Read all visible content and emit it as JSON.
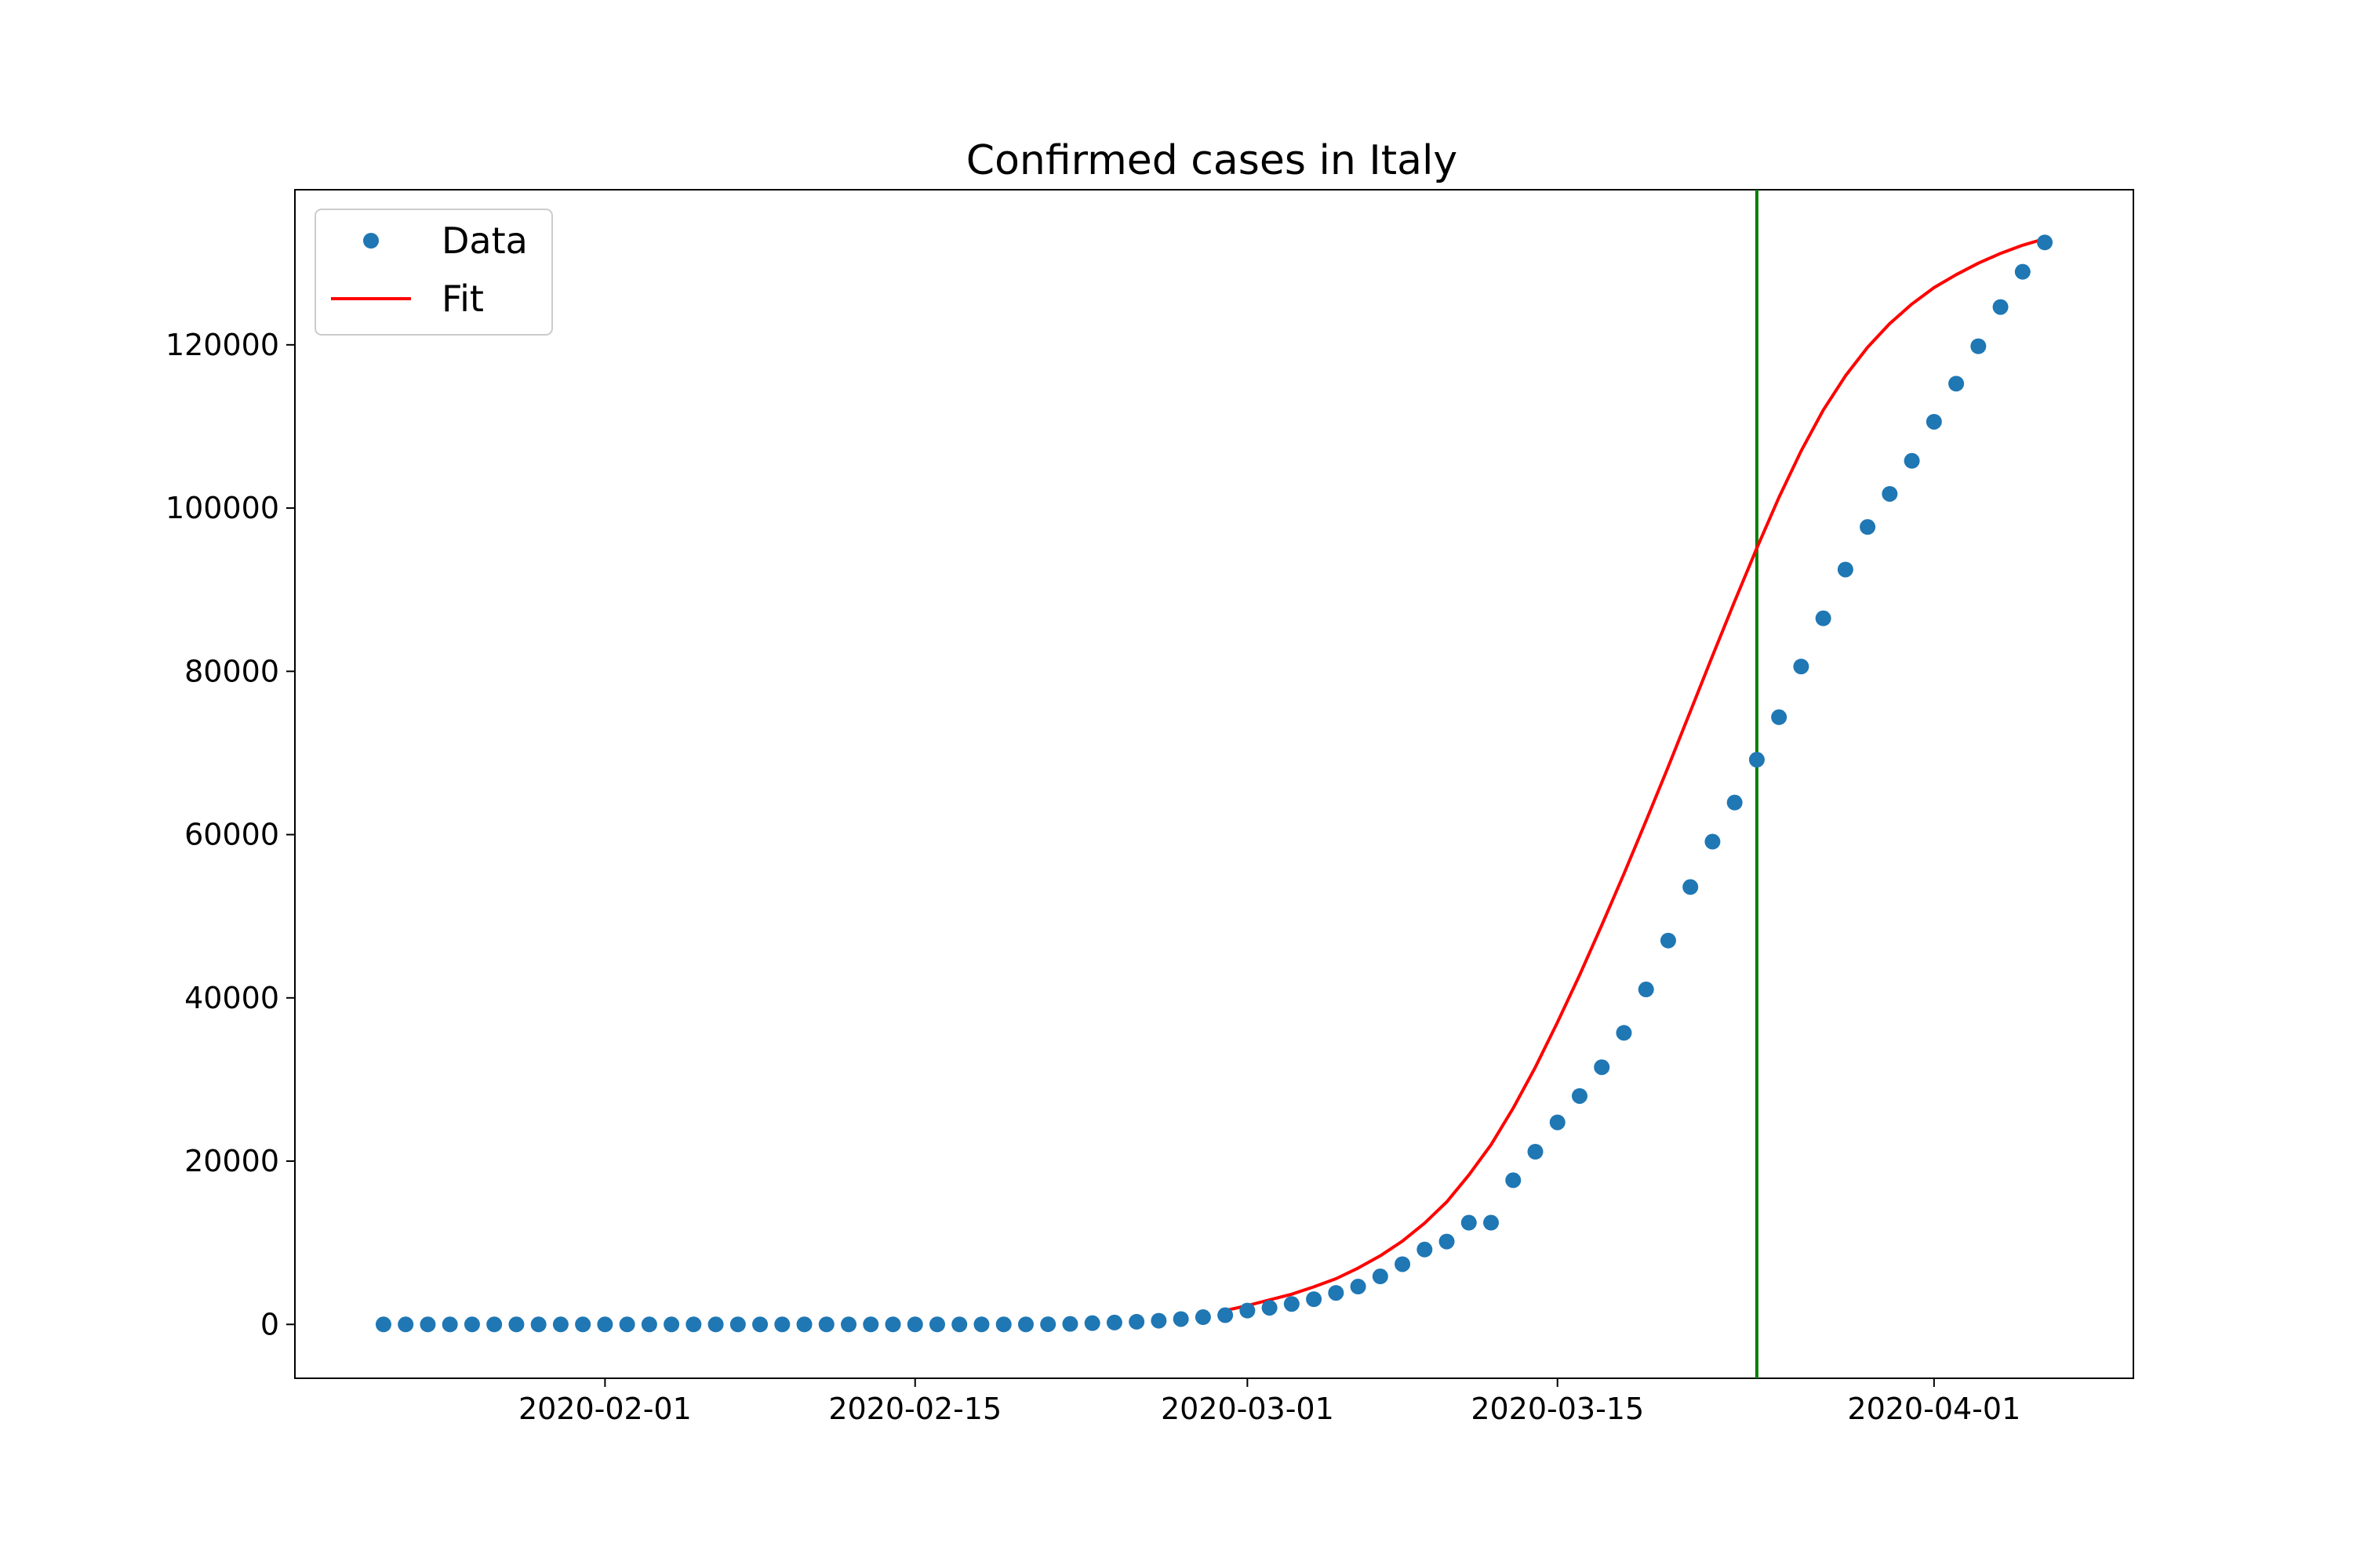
{
  "chart_data": {
    "type": "scatter",
    "title": "Confirmed cases in Italy",
    "xlabel": "",
    "ylabel": "",
    "x_tick_labels": [
      "2020-02-01",
      "2020-02-15",
      "2020-03-01",
      "2020-03-15",
      "2020-04-01"
    ],
    "y_tick_values": [
      0,
      20000,
      40000,
      60000,
      80000,
      100000,
      120000
    ],
    "y_tick_labels": [
      "0",
      "20000",
      "40000",
      "60000",
      "80000",
      "100000",
      "120000"
    ],
    "xlim": [
      "2020-01-18",
      "2020-04-10"
    ],
    "ylim": [
      -6600,
      139000
    ],
    "grid": false,
    "legend_position": "top-left",
    "vertical_marker_date": "2020-03-24",
    "series": [
      {
        "name": "Data",
        "style": "markers",
        "color": "#1f77b4",
        "x": [
          "2020-01-22",
          "2020-01-23",
          "2020-01-24",
          "2020-01-25",
          "2020-01-26",
          "2020-01-27",
          "2020-01-28",
          "2020-01-29",
          "2020-01-30",
          "2020-01-31",
          "2020-02-01",
          "2020-02-02",
          "2020-02-03",
          "2020-02-04",
          "2020-02-05",
          "2020-02-06",
          "2020-02-07",
          "2020-02-08",
          "2020-02-09",
          "2020-02-10",
          "2020-02-11",
          "2020-02-12",
          "2020-02-13",
          "2020-02-14",
          "2020-02-15",
          "2020-02-16",
          "2020-02-17",
          "2020-02-18",
          "2020-02-19",
          "2020-02-20",
          "2020-02-21",
          "2020-02-22",
          "2020-02-23",
          "2020-02-24",
          "2020-02-25",
          "2020-02-26",
          "2020-02-27",
          "2020-02-28",
          "2020-02-29",
          "2020-03-01",
          "2020-03-02",
          "2020-03-03",
          "2020-03-04",
          "2020-03-05",
          "2020-03-06",
          "2020-03-07",
          "2020-03-08",
          "2020-03-09",
          "2020-03-10",
          "2020-03-11",
          "2020-03-12",
          "2020-03-13",
          "2020-03-14",
          "2020-03-15",
          "2020-03-16",
          "2020-03-17",
          "2020-03-18",
          "2020-03-19",
          "2020-03-20",
          "2020-03-21",
          "2020-03-22",
          "2020-03-23",
          "2020-03-24",
          "2020-03-25",
          "2020-03-26",
          "2020-03-27",
          "2020-03-28",
          "2020-03-29",
          "2020-03-30",
          "2020-03-31",
          "2020-04-01",
          "2020-04-02",
          "2020-04-03",
          "2020-04-04",
          "2020-04-05",
          "2020-04-06"
        ],
        "y": [
          0,
          0,
          0,
          0,
          0,
          0,
          0,
          0,
          0,
          2,
          2,
          2,
          2,
          2,
          2,
          2,
          3,
          3,
          3,
          3,
          3,
          3,
          3,
          3,
          3,
          3,
          3,
          3,
          3,
          3,
          20,
          62,
          155,
          229,
          322,
          453,
          655,
          888,
          1128,
          1694,
          2036,
          2502,
          3089,
          3858,
          4636,
          5883,
          7375,
          9172,
          10149,
          12462,
          12462,
          17660,
          21157,
          24747,
          27980,
          31506,
          35713,
          41035,
          47021,
          53578,
          59138,
          63927,
          69176,
          74386,
          80589,
          86498,
          92472,
          97689,
          101739,
          105792,
          110574,
          115242,
          119827,
          124632,
          128948,
          132547
        ]
      },
      {
        "name": "Fit",
        "style": "line",
        "color": "#ff0000",
        "x": [
          "2020-02-29",
          "2020-03-01",
          "2020-03-02",
          "2020-03-03",
          "2020-03-04",
          "2020-03-05",
          "2020-03-06",
          "2020-03-07",
          "2020-03-08",
          "2020-03-09",
          "2020-03-10",
          "2020-03-11",
          "2020-03-12",
          "2020-03-13",
          "2020-03-14",
          "2020-03-15",
          "2020-03-16",
          "2020-03-17",
          "2020-03-18",
          "2020-03-19",
          "2020-03-20",
          "2020-03-21",
          "2020-03-22",
          "2020-03-23",
          "2020-03-24",
          "2020-03-25",
          "2020-03-26",
          "2020-03-27",
          "2020-03-28",
          "2020-03-29",
          "2020-03-30",
          "2020-03-31",
          "2020-04-01",
          "2020-04-02",
          "2020-04-03",
          "2020-04-04",
          "2020-04-05",
          "2020-04-06"
        ],
        "y": [
          1700,
          2300,
          3000,
          3700,
          4600,
          5600,
          6900,
          8400,
          10200,
          12400,
          15000,
          18300,
          22000,
          26500,
          31500,
          37000,
          42800,
          48900,
          55200,
          61700,
          68300,
          75100,
          81900,
          88600,
          95100,
          101300,
          107000,
          112000,
          116200,
          119700,
          122600,
          125000,
          127000,
          128600,
          130000,
          131200,
          132200,
          133000
        ]
      }
    ]
  }
}
